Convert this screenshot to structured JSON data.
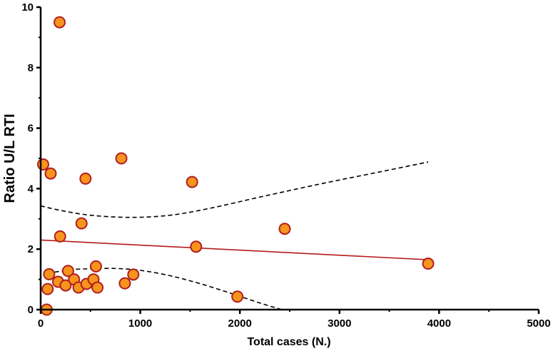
{
  "chart_data": {
    "type": "scatter",
    "xlabel": "Total cases (N.)",
    "ylabel": "Ratio U/L RTI",
    "xlim": [
      0,
      5000
    ],
    "ylim": [
      0,
      10
    ],
    "x_ticks": [
      "0",
      "1000",
      "2000",
      "3000",
      "4000",
      "5000"
    ],
    "y_ticks": [
      "0",
      "2",
      "4",
      "6",
      "8",
      "10"
    ],
    "grid": false,
    "colors": {
      "marker_fill": "#f7941d",
      "marker_stroke": "#b01e1e",
      "fit_line": "#b51b1b",
      "ci_line": "#000000",
      "axis": "#000000"
    },
    "points": [
      {
        "x": 190,
        "y": 9.5
      },
      {
        "x": 25,
        "y": 4.8
      },
      {
        "x": 100,
        "y": 4.5
      },
      {
        "x": 450,
        "y": 4.33
      },
      {
        "x": 810,
        "y": 5.0
      },
      {
        "x": 1520,
        "y": 4.22
      },
      {
        "x": 410,
        "y": 2.85
      },
      {
        "x": 195,
        "y": 2.42
      },
      {
        "x": 2450,
        "y": 2.67
      },
      {
        "x": 1560,
        "y": 2.08
      },
      {
        "x": 3890,
        "y": 1.52
      },
      {
        "x": 60,
        "y": 0.0
      },
      {
        "x": 70,
        "y": 0.68
      },
      {
        "x": 85,
        "y": 1.17
      },
      {
        "x": 175,
        "y": 0.92
      },
      {
        "x": 250,
        "y": 0.8
      },
      {
        "x": 275,
        "y": 1.28
      },
      {
        "x": 335,
        "y": 1.0
      },
      {
        "x": 380,
        "y": 0.73
      },
      {
        "x": 460,
        "y": 0.85
      },
      {
        "x": 530,
        "y": 1.0
      },
      {
        "x": 555,
        "y": 1.43
      },
      {
        "x": 570,
        "y": 0.73
      },
      {
        "x": 845,
        "y": 0.87
      },
      {
        "x": 930,
        "y": 1.16
      },
      {
        "x": 1975,
        "y": 0.43
      }
    ],
    "fit_line": {
      "x": [
        0,
        3890
      ],
      "y": [
        2.3,
        1.65
      ]
    },
    "ci_upper": {
      "x": [
        0,
        200,
        500,
        900,
        1300,
        1700,
        2200,
        2800,
        3400,
        3890
      ],
      "y": [
        3.43,
        3.28,
        3.12,
        3.05,
        3.12,
        3.35,
        3.72,
        4.15,
        4.55,
        4.88
      ]
    },
    "ci_lower": {
      "x": [
        70,
        300,
        500,
        750,
        1000,
        1300,
        1600,
        1900,
        2200,
        2420
      ],
      "y": [
        1.2,
        1.32,
        1.35,
        1.36,
        1.3,
        1.12,
        0.86,
        0.55,
        0.22,
        0.0
      ]
    }
  }
}
